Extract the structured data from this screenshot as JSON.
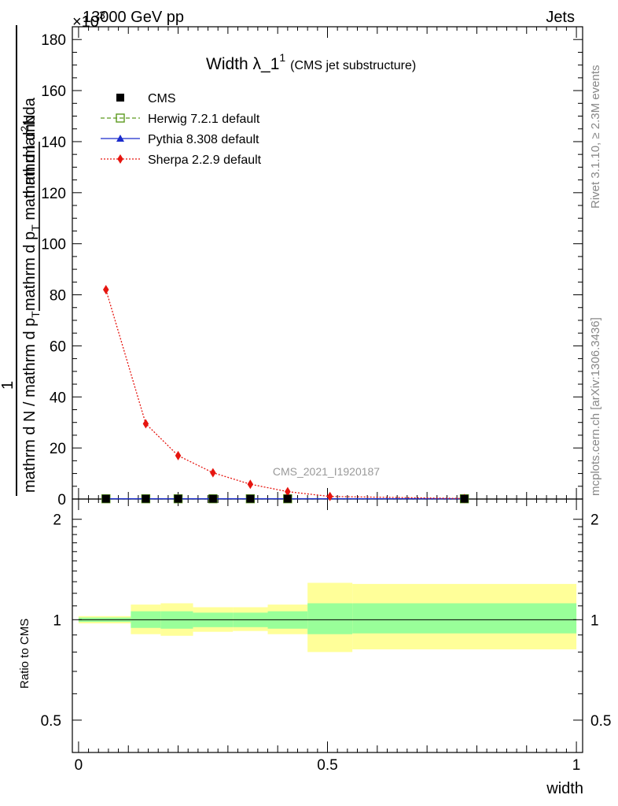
{
  "header": {
    "left": "13000 GeV pp",
    "right": "Jets",
    "exponent": "×10",
    "exponent_power": "3"
  },
  "side_labels": {
    "rivet": "Rivet 3.1.10, ≥ 2.3M events",
    "mcplots": "mcplots.cern.ch [arXiv:1306.3436]"
  },
  "watermark": "CMS_2021_I1920187",
  "chart_data": [
    {
      "type": "line",
      "title": "Width λ_1",
      "title_sup": "1",
      "title_note": "(CMS jet substructure)",
      "ylabel": {
        "numerator": "1",
        "denominator": "mathrm d N / mathrm d p",
        "denominator_sub": "T",
        "frac2_top": "mathrm d",
        "frac2_top_sup": "2",
        "frac2_top_rest": "N",
        "frac2_bottom": "mathrm d p",
        "frac2_bottom_sub": "T",
        "frac2_bottom_rest": " mathrm d lambda"
      },
      "ylim": [
        0,
        185
      ],
      "xlim": [
        -0.0125,
        1.0125
      ],
      "yticks": [
        0,
        20,
        40,
        60,
        80,
        100,
        120,
        140,
        160,
        180
      ],
      "legend_position": "top-left",
      "series": [
        {
          "name": "CMS",
          "color": "#000000",
          "marker": "square",
          "x": [
            0.055,
            0.135,
            0.2,
            0.27,
            0.345,
            0.42,
            0.775
          ],
          "y": [
            0.1,
            0.1,
            0.1,
            0.1,
            0.1,
            0.1,
            0.1
          ]
        },
        {
          "name": "Herwig 7.2.1 default",
          "color": "#5c9a1e",
          "marker": "open-square",
          "line": "dashed",
          "x": [
            0.055,
            0.135,
            0.2,
            0.27,
            0.345,
            0.42,
            0.775
          ],
          "y": [
            0.1,
            0.1,
            0.1,
            0.1,
            0.1,
            0.1,
            0.1
          ]
        },
        {
          "name": "Pythia 8.308 default",
          "color": "#1a2bcc",
          "marker": "triangle",
          "line": "solid",
          "x": [
            0.055,
            0.135,
            0.2,
            0.27,
            0.345,
            0.42,
            0.775
          ],
          "y": [
            0.1,
            0.1,
            0.1,
            0.1,
            0.1,
            0.1,
            0.1
          ]
        },
        {
          "name": "Sherpa 2.2.9 default",
          "color": "#e6150f",
          "marker": "diamond",
          "line": "dotted",
          "x": [
            0.055,
            0.135,
            0.2,
            0.27,
            0.345,
            0.42,
            0.505,
            0.775
          ],
          "y": [
            82,
            29.5,
            17,
            10.3,
            5.8,
            2.9,
            1.0,
            0.2
          ]
        }
      ]
    },
    {
      "type": "area",
      "ylabel": "Ratio to CMS",
      "xlabel": "width",
      "ylim": [
        0.4,
        2.3
      ],
      "log_scale_y": true,
      "yticks": [
        0.5,
        1,
        2
      ],
      "xticks": [
        0,
        0.5,
        1
      ],
      "band_colors": {
        "stat": "#99ff99",
        "total": "#ffff99"
      },
      "bins": [
        {
          "x0": 0.0,
          "x1": 0.105,
          "inner": [
            0.985,
            1.015
          ],
          "outer": [
            0.975,
            1.025
          ]
        },
        {
          "x0": 0.105,
          "x1": 0.165,
          "inner": [
            0.945,
            1.06
          ],
          "outer": [
            0.905,
            1.11
          ]
        },
        {
          "x0": 0.165,
          "x1": 0.23,
          "inner": [
            0.94,
            1.06
          ],
          "outer": [
            0.895,
            1.12
          ]
        },
        {
          "x0": 0.23,
          "x1": 0.31,
          "inner": [
            0.95,
            1.05
          ],
          "outer": [
            0.92,
            1.09
          ]
        },
        {
          "x0": 0.31,
          "x1": 0.38,
          "inner": [
            0.95,
            1.05
          ],
          "outer": [
            0.925,
            1.09
          ]
        },
        {
          "x0": 0.38,
          "x1": 0.46,
          "inner": [
            0.94,
            1.06
          ],
          "outer": [
            0.905,
            1.11
          ]
        },
        {
          "x0": 0.46,
          "x1": 0.55,
          "inner": [
            0.905,
            1.12
          ],
          "outer": [
            0.8,
            1.29
          ]
        },
        {
          "x0": 0.55,
          "x1": 1.0,
          "inner": [
            0.91,
            1.12
          ],
          "outer": [
            0.815,
            1.28
          ]
        }
      ]
    }
  ]
}
